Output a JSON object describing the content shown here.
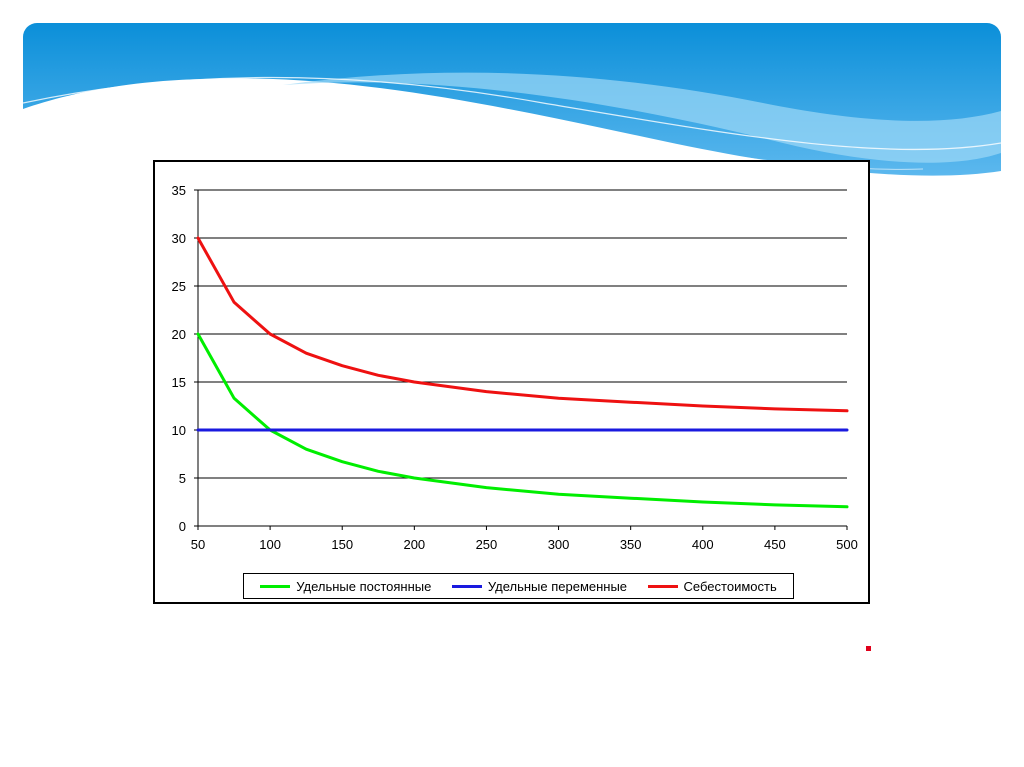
{
  "colors": {
    "banner_dark": "#0a8ed8",
    "banner_light": "#8fd3f4",
    "series_fixed": "#00ee00",
    "series_variable": "#1a1adf",
    "series_cost": "#ee1111",
    "accent_dot": "#e0001b"
  },
  "chart_data": {
    "type": "line",
    "title": "",
    "xlabel": "",
    "ylabel": "",
    "x": [
      50,
      75,
      100,
      125,
      150,
      175,
      200,
      250,
      300,
      350,
      400,
      450,
      500
    ],
    "xticks": [
      50,
      100,
      150,
      200,
      250,
      300,
      350,
      400,
      450,
      500
    ],
    "yticks": [
      0,
      5,
      10,
      15,
      20,
      25,
      30,
      35
    ],
    "xlim": [
      50,
      500
    ],
    "ylim": [
      0,
      35
    ],
    "grid": "horizontal",
    "legend_position": "bottom",
    "series": [
      {
        "name": "Удельные постоянные",
        "color": "#00ee00",
        "values": [
          20,
          13.3,
          10,
          8,
          6.7,
          5.7,
          5,
          4,
          3.3,
          2.9,
          2.5,
          2.2,
          2
        ]
      },
      {
        "name": "Удельные переменные",
        "color": "#1a1adf",
        "values": [
          10,
          10,
          10,
          10,
          10,
          10,
          10,
          10,
          10,
          10,
          10,
          10,
          10
        ]
      },
      {
        "name": "Себестоимость",
        "color": "#ee1111",
        "values": [
          30,
          23.3,
          20,
          18,
          16.7,
          15.7,
          15,
          14,
          13.3,
          12.9,
          12.5,
          12.2,
          12
        ]
      }
    ]
  }
}
